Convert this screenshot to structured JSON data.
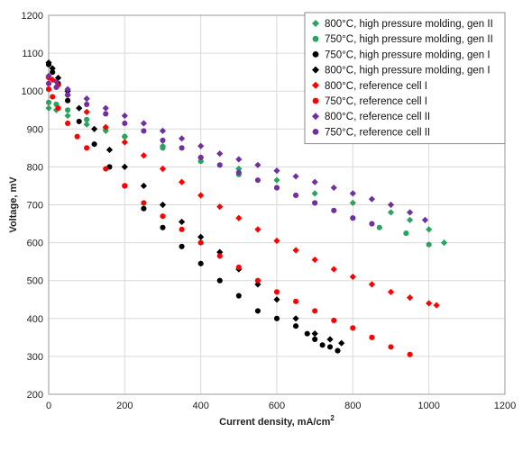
{
  "chart_data": {
    "type": "scatter",
    "title": "",
    "xlabel": "Current density, mA/cm",
    "xlabel_sup": "2",
    "ylabel": "Voltage, mV",
    "xlim": [
      0,
      1200
    ],
    "ylim": [
      200,
      1200
    ],
    "xticks": [
      0,
      200,
      400,
      600,
      800,
      1000,
      1200
    ],
    "yticks": [
      200,
      300,
      400,
      500,
      600,
      700,
      800,
      900,
      1000,
      1100,
      1200
    ],
    "grid": true,
    "legend_position": "top-right",
    "series": [
      {
        "name": "800°C, high pressure molding, gen II",
        "marker": "diamond",
        "color": "#2ca25f",
        "x": [
          0,
          20,
          50,
          100,
          150,
          200,
          300,
          400,
          500,
          600,
          700,
          800,
          900,
          950,
          1000,
          1040
        ],
        "y": [
          955,
          950,
          935,
          912,
          895,
          880,
          855,
          825,
          795,
          765,
          730,
          705,
          680,
          660,
          635,
          600
        ]
      },
      {
        "name": "750°C, high pressure molding, gen II",
        "marker": "circle",
        "color": "#2ca25f",
        "x": [
          0,
          20,
          50,
          100,
          150,
          200,
          300,
          400,
          500,
          600,
          700,
          800,
          870,
          940,
          1000
        ],
        "y": [
          970,
          965,
          950,
          925,
          900,
          880,
          850,
          815,
          780,
          745,
          705,
          665,
          640,
          625,
          595
        ]
      },
      {
        "name": "750°C, high pressure molding, gen I",
        "marker": "circle",
        "color": "#000000",
        "x": [
          0,
          10,
          25,
          50,
          80,
          120,
          160,
          200,
          250,
          300,
          350,
          400,
          450,
          500,
          550,
          600,
          650,
          680,
          700,
          720,
          740,
          760
        ],
        "y": [
          1070,
          1050,
          1020,
          975,
          920,
          860,
          800,
          750,
          690,
          640,
          590,
          545,
          500,
          460,
          420,
          400,
          380,
          360,
          345,
          330,
          325,
          315
        ]
      },
      {
        "name": "800°C, high pressure molding, gen I",
        "marker": "diamond",
        "color": "#000000",
        "x": [
          0,
          10,
          25,
          50,
          80,
          120,
          160,
          200,
          250,
          300,
          350,
          400,
          450,
          500,
          550,
          600,
          650,
          700,
          740,
          770
        ],
        "y": [
          1075,
          1060,
          1035,
          1000,
          955,
          900,
          845,
          800,
          750,
          700,
          655,
          615,
          575,
          530,
          490,
          450,
          400,
          360,
          345,
          335
        ]
      },
      {
        "name": "800°C, reference cell I",
        "marker": "diamond",
        "color": "#ff0000",
        "x": [
          0,
          10,
          25,
          50,
          100,
          150,
          200,
          250,
          300,
          350,
          400,
          450,
          500,
          550,
          600,
          650,
          700,
          750,
          800,
          850,
          900,
          950,
          1000,
          1020
        ],
        "y": [
          1035,
          1030,
          1015,
          990,
          945,
          905,
          865,
          830,
          795,
          760,
          725,
          695,
          665,
          635,
          605,
          580,
          555,
          530,
          510,
          490,
          470,
          455,
          440,
          435
        ]
      },
      {
        "name": "750°C, reference cell I",
        "marker": "circle",
        "color": "#ff0000",
        "x": [
          0,
          10,
          25,
          50,
          75,
          100,
          150,
          200,
          250,
          300,
          350,
          400,
          450,
          500,
          550,
          600,
          650,
          700,
          750,
          800,
          850,
          900,
          950
        ],
        "y": [
          1005,
          985,
          955,
          915,
          880,
          850,
          795,
          750,
          705,
          670,
          635,
          600,
          565,
          535,
          500,
          470,
          445,
          420,
          395,
          375,
          350,
          325,
          305
        ]
      },
      {
        "name": "800°C, reference cell II",
        "marker": "diamond",
        "color": "#7030a0",
        "x": [
          0,
          20,
          50,
          100,
          150,
          200,
          250,
          300,
          350,
          400,
          450,
          500,
          550,
          600,
          650,
          700,
          750,
          800,
          850,
          900,
          950,
          990
        ],
        "y": [
          1040,
          1025,
          1005,
          980,
          955,
          935,
          915,
          895,
          875,
          855,
          835,
          820,
          805,
          790,
          775,
          760,
          745,
          730,
          715,
          700,
          680,
          660
        ]
      },
      {
        "name": "750°C, reference cell II",
        "marker": "circle",
        "color": "#7030a0",
        "x": [
          0,
          20,
          50,
          100,
          150,
          200,
          250,
          300,
          350,
          400,
          450,
          500,
          550,
          600,
          650,
          700,
          750,
          800,
          850
        ],
        "y": [
          1020,
          1010,
          990,
          965,
          940,
          915,
          895,
          870,
          850,
          825,
          805,
          785,
          765,
          745,
          725,
          705,
          685,
          665,
          650
        ]
      }
    ]
  }
}
